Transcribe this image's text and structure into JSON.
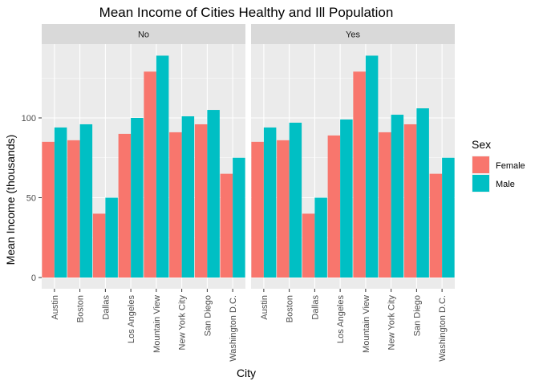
{
  "chart_data": {
    "type": "bar",
    "title": "Mean Income of Cities Healthy and Ill Population",
    "xlabel": "City",
    "ylabel": "Mean Income (thousands)",
    "ylim": [
      0,
      150
    ],
    "yticks": [
      0,
      50,
      100
    ],
    "grid": true,
    "legend_position": "right",
    "legend_title": "Sex",
    "categories": [
      "Austin",
      "Boston",
      "Dallas",
      "Los Angeles",
      "Mountain View",
      "New York City",
      "San Diego",
      "Washington D.C."
    ],
    "colors": {
      "Female": "#F8766D",
      "Male": "#00BFC4"
    },
    "panels": [
      {
        "label": "No",
        "series": [
          {
            "name": "Female",
            "values": [
              85,
              86,
              40,
              90,
              129,
              91,
              96,
              65
            ]
          },
          {
            "name": "Male",
            "values": [
              94,
              96,
              50,
              100,
              139,
              101,
              105,
              75
            ]
          }
        ]
      },
      {
        "label": "Yes",
        "series": [
          {
            "name": "Female",
            "values": [
              85,
              86,
              40,
              89,
              129,
              91,
              96,
              65
            ]
          },
          {
            "name": "Male",
            "values": [
              94,
              97,
              50,
              99,
              139,
              102,
              106,
              75
            ]
          }
        ]
      }
    ]
  }
}
